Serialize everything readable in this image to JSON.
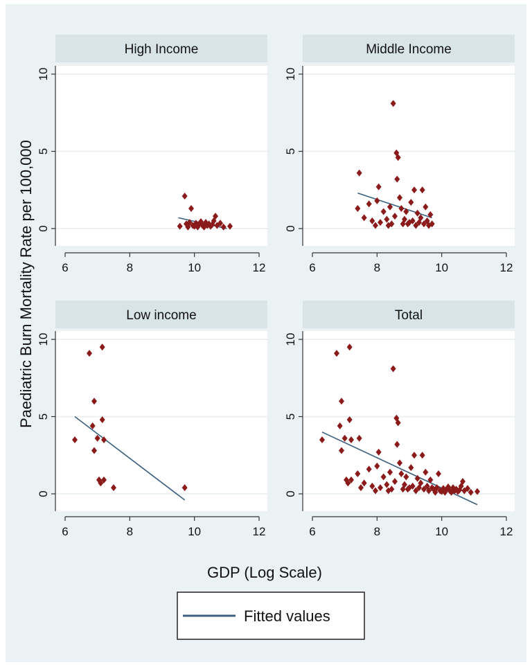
{
  "chart_data": {
    "type": "scatter",
    "xlabel": "GDP (Log Scale)",
    "ylabel": "Paediatric Burn Mortality Rate per 100,000",
    "xlim": [
      6,
      12
    ],
    "ylim": [
      0,
      10
    ],
    "x_ticks": [
      6,
      8,
      10,
      12
    ],
    "y_ticks": [
      0,
      5,
      10
    ],
    "grid": true,
    "legend": {
      "position": "bottom",
      "entries": [
        "Fitted values"
      ]
    },
    "colors": {
      "points": "#8b1a1a",
      "fit": "#3a5f7f",
      "header": "#d8e4e8",
      "background": "#eaf2f3"
    },
    "panels": [
      {
        "title": "High Income",
        "points": [
          [
            9.55,
            0.15
          ],
          [
            9.7,
            2.1
          ],
          [
            9.75,
            0.3
          ],
          [
            9.8,
            0.1
          ],
          [
            9.85,
            0.4
          ],
          [
            9.9,
            1.3
          ],
          [
            9.95,
            0.2
          ],
          [
            10.0,
            0.15
          ],
          [
            10.05,
            0.35
          ],
          [
            10.1,
            0.1
          ],
          [
            10.15,
            0.3
          ],
          [
            10.2,
            0.45
          ],
          [
            10.25,
            0.2
          ],
          [
            10.3,
            0.1
          ],
          [
            10.35,
            0.4
          ],
          [
            10.4,
            0.2
          ],
          [
            10.45,
            0.3
          ],
          [
            10.5,
            0.15
          ],
          [
            10.55,
            0.25
          ],
          [
            10.6,
            0.5
          ],
          [
            10.65,
            0.8
          ],
          [
            10.7,
            0.2
          ],
          [
            10.8,
            0.35
          ],
          [
            10.9,
            0.1
          ],
          [
            11.1,
            0.15
          ]
        ],
        "fit": [
          [
            9.5,
            0.7
          ],
          [
            11.0,
            0.0
          ]
        ]
      },
      {
        "title": "Middle Income",
        "points": [
          [
            7.4,
            1.3
          ],
          [
            7.45,
            3.6
          ],
          [
            7.6,
            0.7
          ],
          [
            7.75,
            1.6
          ],
          [
            7.85,
            0.5
          ],
          [
            7.95,
            0.2
          ],
          [
            8.0,
            1.8
          ],
          [
            8.05,
            2.7
          ],
          [
            8.1,
            0.4
          ],
          [
            8.2,
            1.1
          ],
          [
            8.3,
            0.6
          ],
          [
            8.35,
            0.2
          ],
          [
            8.4,
            1.4
          ],
          [
            8.45,
            0.3
          ],
          [
            8.5,
            8.1
          ],
          [
            8.55,
            0.8
          ],
          [
            8.6,
            4.9
          ],
          [
            8.62,
            3.2
          ],
          [
            8.65,
            4.6
          ],
          [
            8.7,
            2.0
          ],
          [
            8.75,
            1.3
          ],
          [
            8.8,
            0.3
          ],
          [
            8.85,
            0.6
          ],
          [
            8.9,
            1.1
          ],
          [
            8.95,
            0.3
          ],
          [
            9.0,
            0.4
          ],
          [
            9.05,
            1.7
          ],
          [
            9.1,
            0.5
          ],
          [
            9.15,
            2.5
          ],
          [
            9.2,
            0.2
          ],
          [
            9.25,
            1.0
          ],
          [
            9.3,
            0.4
          ],
          [
            9.35,
            0.7
          ],
          [
            9.4,
            2.5
          ],
          [
            9.45,
            0.3
          ],
          [
            9.5,
            1.4
          ],
          [
            9.55,
            0.5
          ],
          [
            9.6,
            0.2
          ],
          [
            9.65,
            0.9
          ],
          [
            9.7,
            0.3
          ]
        ],
        "fit": [
          [
            7.4,
            2.3
          ],
          [
            9.7,
            0.7
          ]
        ]
      },
      {
        "title": "Low income",
        "points": [
          [
            6.3,
            3.5
          ],
          [
            6.75,
            9.1
          ],
          [
            6.85,
            4.4
          ],
          [
            6.9,
            6.0
          ],
          [
            6.9,
            2.8
          ],
          [
            7.0,
            3.6
          ],
          [
            7.05,
            0.9
          ],
          [
            7.1,
            0.7
          ],
          [
            7.15,
            4.8
          ],
          [
            7.15,
            9.5
          ],
          [
            7.2,
            3.5
          ],
          [
            7.2,
            0.9
          ],
          [
            7.5,
            0.4
          ],
          [
            9.7,
            0.4
          ]
        ],
        "fit": [
          [
            6.3,
            5.0
          ],
          [
            9.7,
            -0.4
          ]
        ]
      },
      {
        "title": "Total",
        "points": [
          [
            6.3,
            3.5
          ],
          [
            6.75,
            9.1
          ],
          [
            6.85,
            4.4
          ],
          [
            6.9,
            6.0
          ],
          [
            6.9,
            2.8
          ],
          [
            7.0,
            3.6
          ],
          [
            7.05,
            0.9
          ],
          [
            7.1,
            0.7
          ],
          [
            7.15,
            4.8
          ],
          [
            7.15,
            9.5
          ],
          [
            7.2,
            3.5
          ],
          [
            7.2,
            0.9
          ],
          [
            7.4,
            1.3
          ],
          [
            7.45,
            3.6
          ],
          [
            7.5,
            0.4
          ],
          [
            7.6,
            0.7
          ],
          [
            7.75,
            1.6
          ],
          [
            7.85,
            0.5
          ],
          [
            7.95,
            0.2
          ],
          [
            8.0,
            1.8
          ],
          [
            8.05,
            2.7
          ],
          [
            8.1,
            0.4
          ],
          [
            8.2,
            1.1
          ],
          [
            8.3,
            0.6
          ],
          [
            8.35,
            0.2
          ],
          [
            8.4,
            1.4
          ],
          [
            8.45,
            0.3
          ],
          [
            8.5,
            8.1
          ],
          [
            8.55,
            0.8
          ],
          [
            8.6,
            4.9
          ],
          [
            8.62,
            3.2
          ],
          [
            8.65,
            4.6
          ],
          [
            8.7,
            2.0
          ],
          [
            8.75,
            1.3
          ],
          [
            8.8,
            0.3
          ],
          [
            8.85,
            0.6
          ],
          [
            8.9,
            1.1
          ],
          [
            8.95,
            0.3
          ],
          [
            9.0,
            0.4
          ],
          [
            9.05,
            1.7
          ],
          [
            9.1,
            0.5
          ],
          [
            9.15,
            2.5
          ],
          [
            9.2,
            0.2
          ],
          [
            9.25,
            1.0
          ],
          [
            9.3,
            0.4
          ],
          [
            9.35,
            0.7
          ],
          [
            9.4,
            2.5
          ],
          [
            9.45,
            0.3
          ],
          [
            9.5,
            1.4
          ],
          [
            9.55,
            0.5
          ],
          [
            9.6,
            0.2
          ],
          [
            9.65,
            0.9
          ],
          [
            9.7,
            0.4
          ],
          [
            9.75,
            0.3
          ],
          [
            9.8,
            0.1
          ],
          [
            9.85,
            0.4
          ],
          [
            9.9,
            1.3
          ],
          [
            9.95,
            0.2
          ],
          [
            10.0,
            0.15
          ],
          [
            10.05,
            0.35
          ],
          [
            10.1,
            0.1
          ],
          [
            10.15,
            0.3
          ],
          [
            10.2,
            0.45
          ],
          [
            10.25,
            0.2
          ],
          [
            10.3,
            0.1
          ],
          [
            10.35,
            0.4
          ],
          [
            10.4,
            0.2
          ],
          [
            10.45,
            0.3
          ],
          [
            10.5,
            0.15
          ],
          [
            10.55,
            0.25
          ],
          [
            10.6,
            0.5
          ],
          [
            10.65,
            0.8
          ],
          [
            10.7,
            0.2
          ],
          [
            10.8,
            0.35
          ],
          [
            10.9,
            0.1
          ],
          [
            11.1,
            0.15
          ]
        ],
        "fit": [
          [
            6.3,
            4.0
          ],
          [
            11.1,
            -0.7
          ]
        ]
      }
    ]
  }
}
